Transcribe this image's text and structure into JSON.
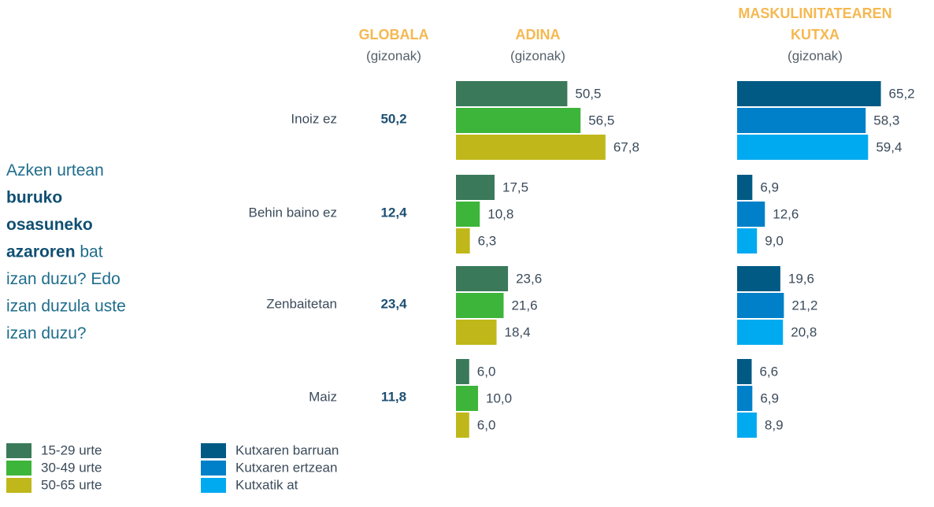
{
  "question": [
    [
      {
        "text": "Azken urtean",
        "bold": false
      }
    ],
    [
      {
        "text": "buruko",
        "bold": true
      }
    ],
    [
      {
        "text": "osasuneko",
        "bold": true
      }
    ],
    [
      {
        "text": "azaroren",
        "bold": true
      },
      {
        "text": " bat",
        "bold": false
      }
    ],
    [
      {
        "text": "izan duzu? Edo",
        "bold": false
      }
    ],
    [
      {
        "text": "izan duzula uste",
        "bold": false
      }
    ],
    [
      {
        "text": "izan duzu?",
        "bold": false
      }
    ]
  ],
  "global": {
    "title": "GLOBALA",
    "subtitle": "(gizonak)",
    "values": [
      50.2,
      12.4,
      23.4,
      11.8
    ],
    "value_labels": [
      "50,2",
      "12,4",
      "23,4",
      "11,8"
    ]
  },
  "chart_data": [
    {
      "type": "bar",
      "orientation": "horizontal",
      "title": "ADINA",
      "subtitle": "(gizonak)",
      "categories": [
        "Inoiz ez",
        "Behin baino ez",
        "Zenbaitetan",
        "Maiz"
      ],
      "series": [
        {
          "name": "15-29 urte",
          "color": "#3a7a5a",
          "values": [
            50.5,
            17.5,
            23.6,
            6.0
          ],
          "value_labels": [
            "50,5",
            "17,5",
            "23,6",
            "6,0"
          ]
        },
        {
          "name": "30-49 urte",
          "color": "#3db53a",
          "values": [
            56.5,
            10.8,
            21.6,
            10.0
          ],
          "value_labels": [
            "56,5",
            "10,8",
            "21,6",
            "10,0"
          ]
        },
        {
          "name": "50-65 urte",
          "color": "#c0b81a",
          "values": [
            67.8,
            6.3,
            18.4,
            6.0
          ],
          "value_labels": [
            "67,8",
            "6,3",
            "18,4",
            "6,0"
          ]
        }
      ]
    },
    {
      "type": "bar",
      "orientation": "horizontal",
      "title": [
        "MASKULINITATEAREN",
        "KUTXA"
      ],
      "subtitle": "(gizonak)",
      "series": [
        {
          "name": "Kutxaren barruan",
          "color": "#005a84",
          "values": [
            65.2,
            6.9,
            19.6,
            6.6
          ],
          "value_labels": [
            "65,2",
            "6,9",
            "19,6",
            "6,6"
          ]
        },
        {
          "name": "Kutxaren ertzean",
          "color": "#0080c8",
          "values": [
            58.3,
            12.6,
            21.2,
            6.9
          ],
          "value_labels": [
            "58,3",
            "12,6",
            "21,2",
            "6,9"
          ]
        },
        {
          "name": "Kutxatik at",
          "color": "#00aaf0",
          "values": [
            59.4,
            9.0,
            20.8,
            8.9
          ],
          "value_labels": [
            "59,4",
            "9,0",
            "20,8",
            "8,9"
          ]
        }
      ]
    }
  ]
}
